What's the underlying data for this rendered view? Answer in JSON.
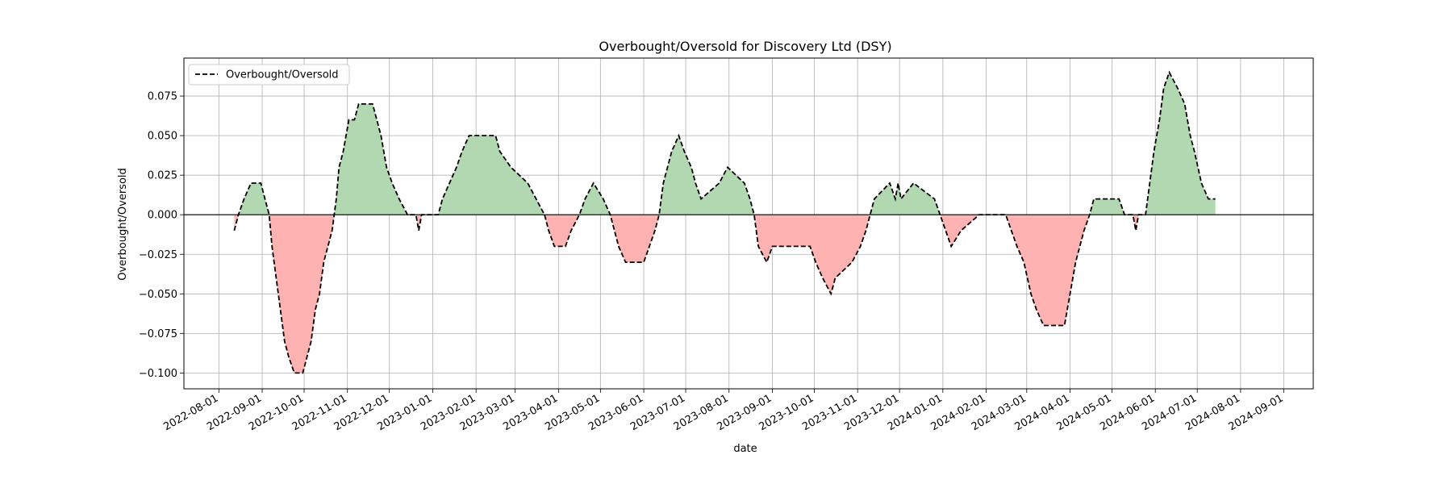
{
  "chart_data": {
    "type": "area",
    "title": "Overbought/Oversold for Discovery Ltd (DSY)",
    "xlabel": "date",
    "ylabel": "Overbought/Oversold",
    "legend": {
      "position": "top-left",
      "entries": [
        "Overbought/Oversold"
      ]
    },
    "grid": true,
    "xlim": [
      "2022-07-07",
      "2024-09-22"
    ],
    "ylim": [
      -0.11,
      0.099
    ],
    "x_ticks": [
      "2022-08-01",
      "2022-09-01",
      "2022-10-01",
      "2022-11-01",
      "2022-12-01",
      "2023-01-01",
      "2023-02-01",
      "2023-03-01",
      "2023-04-01",
      "2023-05-01",
      "2023-06-01",
      "2023-07-01",
      "2023-08-01",
      "2023-09-01",
      "2023-10-01",
      "2023-11-01",
      "2023-12-01",
      "2024-01-01",
      "2024-02-01",
      "2024-03-01",
      "2024-04-01",
      "2024-05-01",
      "2024-06-01",
      "2024-07-01",
      "2024-08-01",
      "2024-09-01"
    ],
    "y_ticks": [
      -0.1,
      -0.075,
      -0.05,
      -0.025,
      0.0,
      0.025,
      0.05,
      0.075
    ],
    "y_tick_labels": [
      "−0.100",
      "−0.075",
      "−0.050",
      "−0.025",
      "0.000",
      "0.025",
      "0.050",
      "0.075"
    ],
    "colors": {
      "positive_fill": "#b2d8b2",
      "negative_fill": "#ffb2b2",
      "line": "#000000",
      "zero_line": "#000000"
    },
    "series": [
      {
        "name": "Overbought/Oversold",
        "points": [
          [
            "2022-08-12",
            -0.01
          ],
          [
            "2022-08-15",
            0.0
          ],
          [
            "2022-08-19",
            0.01
          ],
          [
            "2022-08-24",
            0.02
          ],
          [
            "2022-08-31",
            0.02
          ],
          [
            "2022-09-03",
            0.01
          ],
          [
            "2022-09-06",
            0.0
          ],
          [
            "2022-09-08",
            -0.02
          ],
          [
            "2022-09-11",
            -0.04
          ],
          [
            "2022-09-14",
            -0.06
          ],
          [
            "2022-09-17",
            -0.08
          ],
          [
            "2022-09-20",
            -0.09
          ],
          [
            "2022-09-24",
            -0.1
          ],
          [
            "2022-09-30",
            -0.1
          ],
          [
            "2022-10-03",
            -0.09
          ],
          [
            "2022-10-06",
            -0.08
          ],
          [
            "2022-10-09",
            -0.06
          ],
          [
            "2022-10-12",
            -0.05
          ],
          [
            "2022-10-15",
            -0.03
          ],
          [
            "2022-10-18",
            -0.02
          ],
          [
            "2022-10-21",
            -0.01
          ],
          [
            "2022-10-24",
            0.01
          ],
          [
            "2022-10-26",
            0.03
          ],
          [
            "2022-10-29",
            0.04
          ],
          [
            "2022-11-02",
            0.06
          ],
          [
            "2022-11-06",
            0.06
          ],
          [
            "2022-11-09",
            0.07
          ],
          [
            "2022-11-19",
            0.07
          ],
          [
            "2022-11-22",
            0.06
          ],
          [
            "2022-11-25",
            0.05
          ],
          [
            "2022-11-29",
            0.03
          ],
          [
            "2022-12-03",
            0.02
          ],
          [
            "2022-12-08",
            0.01
          ],
          [
            "2022-12-14",
            0.0
          ],
          [
            "2022-12-20",
            0.0
          ],
          [
            "2022-12-22",
            -0.01
          ],
          [
            "2022-12-24",
            0.0
          ],
          [
            "2023-01-05",
            0.0
          ],
          [
            "2023-01-08",
            0.01
          ],
          [
            "2023-01-13",
            0.02
          ],
          [
            "2023-01-18",
            0.03
          ],
          [
            "2023-01-22",
            0.04
          ],
          [
            "2023-01-27",
            0.05
          ],
          [
            "2023-02-15",
            0.05
          ],
          [
            "2023-02-18",
            0.04
          ],
          [
            "2023-02-26",
            0.03
          ],
          [
            "2023-03-10",
            0.02
          ],
          [
            "2023-03-16",
            0.01
          ],
          [
            "2023-03-22",
            0.0
          ],
          [
            "2023-03-25",
            -0.01
          ],
          [
            "2023-03-29",
            -0.02
          ],
          [
            "2023-04-06",
            -0.02
          ],
          [
            "2023-04-10",
            -0.01
          ],
          [
            "2023-04-16",
            0.0
          ],
          [
            "2023-04-20",
            0.01
          ],
          [
            "2023-04-26",
            0.02
          ],
          [
            "2023-05-03",
            0.01
          ],
          [
            "2023-05-08",
            0.0
          ],
          [
            "2023-05-11",
            -0.01
          ],
          [
            "2023-05-14",
            -0.02
          ],
          [
            "2023-05-19",
            -0.03
          ],
          [
            "2023-06-01",
            -0.03
          ],
          [
            "2023-06-05",
            -0.02
          ],
          [
            "2023-06-09",
            -0.01
          ],
          [
            "2023-06-12",
            0.0
          ],
          [
            "2023-06-15",
            0.02
          ],
          [
            "2023-06-18",
            0.03
          ],
          [
            "2023-06-21",
            0.04
          ],
          [
            "2023-06-26",
            0.05
          ],
          [
            "2023-06-30",
            0.04
          ],
          [
            "2023-07-05",
            0.03
          ],
          [
            "2023-07-08",
            0.02
          ],
          [
            "2023-07-12",
            0.01
          ],
          [
            "2023-07-25",
            0.02
          ],
          [
            "2023-07-31",
            0.03
          ],
          [
            "2023-08-12",
            0.02
          ],
          [
            "2023-08-16",
            0.01
          ],
          [
            "2023-08-19",
            0.0
          ],
          [
            "2023-08-22",
            -0.02
          ],
          [
            "2023-08-28",
            -0.03
          ],
          [
            "2023-09-01",
            -0.02
          ],
          [
            "2023-09-28",
            -0.02
          ],
          [
            "2023-10-02",
            -0.03
          ],
          [
            "2023-10-07",
            -0.04
          ],
          [
            "2023-10-13",
            -0.05
          ],
          [
            "2023-10-16",
            -0.04
          ],
          [
            "2023-10-28",
            -0.03
          ],
          [
            "2023-11-03",
            -0.02
          ],
          [
            "2023-11-07",
            -0.01
          ],
          [
            "2023-11-10",
            0.0
          ],
          [
            "2023-11-13",
            0.01
          ],
          [
            "2023-11-24",
            0.02
          ],
          [
            "2023-11-28",
            0.01
          ],
          [
            "2023-11-30",
            0.02
          ],
          [
            "2023-12-02",
            0.01
          ],
          [
            "2023-12-11",
            0.02
          ],
          [
            "2023-12-26",
            0.01
          ],
          [
            "2023-12-30",
            0.0
          ],
          [
            "2024-01-03",
            -0.01
          ],
          [
            "2024-01-07",
            -0.02
          ],
          [
            "2024-01-14",
            -0.01
          ],
          [
            "2024-01-27",
            0.0
          ],
          [
            "2024-02-15",
            0.0
          ],
          [
            "2024-02-19",
            -0.01
          ],
          [
            "2024-02-23",
            -0.02
          ],
          [
            "2024-02-28",
            -0.03
          ],
          [
            "2024-03-04",
            -0.05
          ],
          [
            "2024-03-08",
            -0.06
          ],
          [
            "2024-03-13",
            -0.07
          ],
          [
            "2024-03-28",
            -0.07
          ],
          [
            "2024-04-01",
            -0.05
          ],
          [
            "2024-04-05",
            -0.03
          ],
          [
            "2024-04-08",
            -0.02
          ],
          [
            "2024-04-11",
            -0.01
          ],
          [
            "2024-04-15",
            0.0
          ],
          [
            "2024-04-18",
            0.01
          ],
          [
            "2024-05-06",
            0.01
          ],
          [
            "2024-05-10",
            0.0
          ],
          [
            "2024-05-16",
            0.0
          ],
          [
            "2024-05-18",
            -0.01
          ],
          [
            "2024-05-20",
            0.0
          ],
          [
            "2024-05-25",
            0.0
          ],
          [
            "2024-05-28",
            0.02
          ],
          [
            "2024-05-31",
            0.04
          ],
          [
            "2024-06-04",
            0.06
          ],
          [
            "2024-06-07",
            0.08
          ],
          [
            "2024-06-11",
            0.09
          ],
          [
            "2024-06-17",
            0.08
          ],
          [
            "2024-06-22",
            0.07
          ],
          [
            "2024-06-26",
            0.05
          ],
          [
            "2024-06-29",
            0.04
          ],
          [
            "2024-07-04",
            0.02
          ],
          [
            "2024-07-09",
            0.01
          ],
          [
            "2024-07-14",
            0.01
          ]
        ]
      }
    ]
  }
}
